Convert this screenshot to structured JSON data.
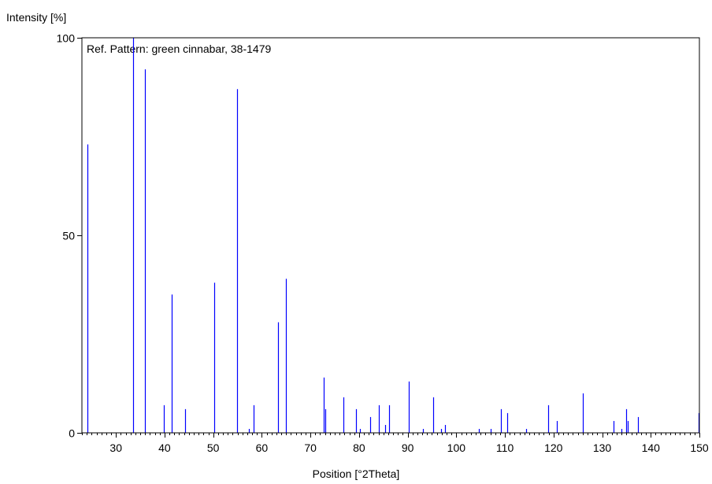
{
  "chart_data": {
    "type": "bar",
    "title": "Ref. Pattern: green cinnabar, 38-1479",
    "xlabel": "Position [°2Theta]",
    "ylabel": "Intensity [%]",
    "xlim": [
      23,
      150
    ],
    "ylim": [
      0,
      100
    ],
    "xticks": [
      30,
      40,
      50,
      60,
      70,
      80,
      90,
      100,
      110,
      120,
      130,
      140,
      150
    ],
    "yticks": [
      0,
      50,
      100
    ],
    "grid": false,
    "bar_color": "#0000ff",
    "x": [
      24.2,
      33.5,
      35.9,
      39.8,
      41.4,
      44.3,
      50.2,
      54.9,
      57.3,
      58.3,
      63.4,
      65.0,
      72.8,
      73.1,
      76.8,
      79.3,
      80.2,
      82.3,
      84.1,
      85.4,
      86.2,
      90.3,
      93.1,
      95.3,
      96.8,
      97.6,
      104.6,
      107.1,
      109.1,
      110.5,
      114.3,
      118.9,
      120.6,
      126.0,
      132.3,
      134.0,
      134.9,
      135.2,
      137.4,
      149.8
    ],
    "values": [
      73,
      100,
      92,
      7,
      35,
      6,
      38,
      87,
      1,
      7,
      28,
      39,
      14,
      6,
      9,
      6,
      1,
      4,
      7,
      2,
      7,
      13,
      1,
      9,
      1,
      2,
      1,
      1,
      6,
      5,
      1,
      7,
      3,
      10,
      3,
      1,
      6,
      3,
      4,
      5
    ]
  }
}
